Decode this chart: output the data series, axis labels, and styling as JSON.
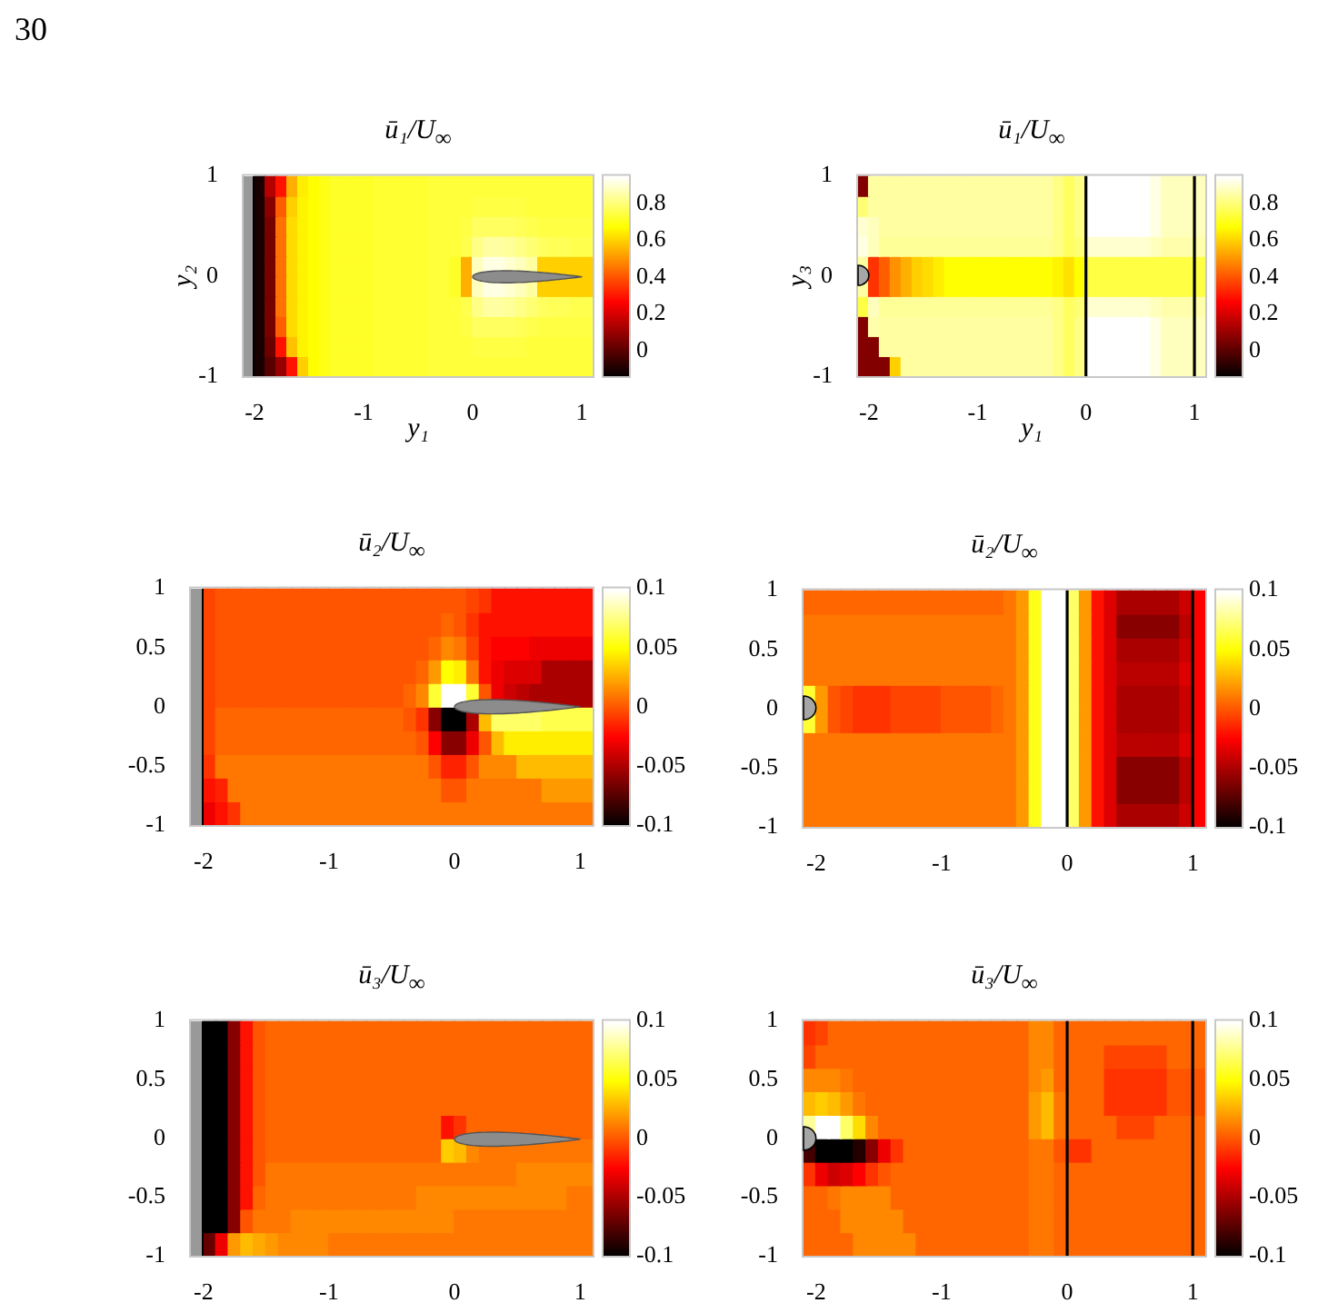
{
  "chart_data": [
    {
      "type": "heatmap",
      "title": "ū₁/U$_{∞}$",
      "xlabel": "y₁",
      "ylabel": "y₂",
      "annotations": [
        "30"
      ],
      "x": [
        -2.05,
        -1.95,
        -1.85,
        -1.75,
        -1.65,
        -1.55,
        -1.45,
        -1.35,
        -1.25,
        -1.15,
        -1.05,
        -0.95,
        -0.85,
        -0.75,
        -0.65,
        -0.55,
        -0.45,
        -0.35,
        -0.25,
        -0.15,
        -0.05,
        0.05,
        0.15,
        0.25,
        0.35,
        0.45,
        0.55,
        0.65,
        0.75,
        0.85,
        0.95,
        1.05
      ],
      "xlim": [
        -2.1,
        1.1
      ],
      "xticks": [
        -2,
        -1,
        0,
        1
      ],
      "ylim": [
        -1,
        1
      ],
      "yticks": [
        -1,
        0,
        1
      ],
      "clim": [
        -0.14,
        0.95
      ],
      "cticks": [
        0,
        0.2,
        0.4,
        0.6,
        0.8
      ],
      "cells": [
        [
          null,
          -0.1,
          0.15,
          0.3,
          0.55,
          0.65,
          0.68,
          0.7,
          0.72,
          0.72,
          0.72,
          0.72,
          0.73,
          0.73,
          0.73,
          0.73,
          0.73,
          0.74,
          0.74,
          0.74,
          0.74,
          0.74,
          0.74,
          0.74,
          0.74,
          0.74,
          0.74,
          0.74,
          0.74,
          0.74,
          0.74,
          0.74
        ],
        [
          null,
          -0.1,
          0.08,
          0.42,
          0.6,
          0.66,
          0.68,
          0.7,
          0.72,
          0.72,
          0.72,
          0.72,
          0.73,
          0.73,
          0.73,
          0.73,
          0.73,
          0.74,
          0.74,
          0.74,
          0.74,
          0.75,
          0.75,
          0.75,
          0.75,
          0.75,
          0.74,
          0.74,
          0.74,
          0.74,
          0.74,
          0.74
        ],
        [
          null,
          -0.1,
          0.05,
          0.45,
          0.62,
          0.66,
          0.68,
          0.7,
          0.72,
          0.72,
          0.72,
          0.72,
          0.73,
          0.73,
          0.73,
          0.73,
          0.73,
          0.74,
          0.74,
          0.74,
          0.75,
          0.78,
          0.78,
          0.78,
          0.78,
          0.77,
          0.76,
          0.75,
          0.75,
          0.75,
          0.75,
          0.75
        ],
        [
          null,
          -0.1,
          0.05,
          0.45,
          0.62,
          0.66,
          0.68,
          0.7,
          0.72,
          0.72,
          0.72,
          0.72,
          0.73,
          0.73,
          0.73,
          0.73,
          0.73,
          0.74,
          0.74,
          0.74,
          0.76,
          0.82,
          0.85,
          0.85,
          0.84,
          0.82,
          0.8,
          0.78,
          0.77,
          0.77,
          0.76,
          0.76
        ],
        [
          null,
          -0.1,
          0.05,
          0.45,
          0.62,
          0.66,
          0.68,
          0.7,
          0.72,
          0.72,
          0.72,
          0.72,
          0.73,
          0.73,
          0.73,
          0.73,
          0.73,
          0.74,
          0.74,
          0.72,
          0.55,
          0.88,
          0.92,
          0.92,
          0.9,
          0.88,
          0.85,
          0.6,
          0.6,
          0.6,
          0.6,
          0.6
        ],
        [
          null,
          -0.1,
          0.05,
          0.45,
          0.62,
          0.66,
          0.68,
          0.7,
          0.72,
          0.72,
          0.72,
          0.72,
          0.73,
          0.73,
          0.73,
          0.73,
          0.73,
          0.74,
          0.74,
          0.72,
          0.55,
          0.88,
          0.92,
          0.92,
          0.9,
          0.88,
          0.85,
          0.6,
          0.6,
          0.6,
          0.6,
          0.6
        ],
        [
          null,
          -0.1,
          0.05,
          0.45,
          0.62,
          0.66,
          0.68,
          0.7,
          0.72,
          0.72,
          0.72,
          0.72,
          0.73,
          0.73,
          0.73,
          0.73,
          0.73,
          0.74,
          0.74,
          0.74,
          0.76,
          0.82,
          0.85,
          0.85,
          0.84,
          0.82,
          0.8,
          0.78,
          0.77,
          0.77,
          0.76,
          0.76
        ],
        [
          null,
          -0.1,
          0.05,
          0.42,
          0.62,
          0.66,
          0.68,
          0.7,
          0.72,
          0.72,
          0.72,
          0.72,
          0.73,
          0.73,
          0.73,
          0.73,
          0.73,
          0.74,
          0.74,
          0.74,
          0.75,
          0.78,
          0.78,
          0.78,
          0.78,
          0.77,
          0.76,
          0.75,
          0.75,
          0.75,
          0.75,
          0.75
        ],
        [
          null,
          -0.1,
          0.03,
          0.3,
          0.58,
          0.66,
          0.68,
          0.7,
          0.72,
          0.72,
          0.72,
          0.72,
          0.73,
          0.73,
          0.73,
          0.73,
          0.73,
          0.74,
          0.74,
          0.74,
          0.74,
          0.75,
          0.75,
          0.75,
          0.75,
          0.75,
          0.74,
          0.74,
          0.74,
          0.74,
          0.74,
          0.74
        ],
        [
          null,
          -0.1,
          0,
          0.1,
          0.3,
          0.6,
          0.68,
          0.7,
          0.72,
          0.72,
          0.72,
          0.72,
          0.73,
          0.73,
          0.73,
          0.73,
          0.73,
          0.74,
          0.74,
          0.74,
          0.74,
          0.74,
          0.74,
          0.74,
          0.74,
          0.74,
          0.74,
          0.74,
          0.74,
          0.74,
          0.74,
          0.74
        ]
      ]
    },
    {
      "type": "heatmap",
      "title": "ū₁/U$_{∞}$",
      "xlabel": "y₁",
      "ylabel": "y₃",
      "x": [
        -2.05,
        -1.95,
        -1.85,
        -1.75,
        -1.65,
        -1.55,
        -1.45,
        -1.35,
        -1.25,
        -1.15,
        -1.05,
        -0.95,
        -0.85,
        -0.75,
        -0.65,
        -0.55,
        -0.45,
        -0.35,
        -0.25,
        -0.15,
        -0.05,
        0.05,
        0.15,
        0.25,
        0.35,
        0.45,
        0.55,
        0.65,
        0.75,
        0.85,
        0.95,
        1.05
      ],
      "xlim": [
        -2.1,
        1.1
      ],
      "xticks": [
        -2,
        -1,
        0,
        1
      ],
      "ylim": [
        -1,
        1
      ],
      "yticks": [
        -1,
        0,
        1
      ],
      "clim": [
        -0.14,
        0.95
      ],
      "cticks": [
        0,
        0.2,
        0.4,
        0.6,
        0.8
      ],
      "ref_lines": [
        {
          "axis": "x",
          "value": 0,
          "color": "#000000"
        },
        {
          "axis": "x",
          "value": 1,
          "color": "#000000"
        }
      ],
      "cells": [
        [
          0.07,
          0.85,
          0.85,
          0.85,
          0.85,
          0.85,
          0.85,
          0.85,
          0.85,
          0.85,
          0.85,
          0.85,
          0.85,
          0.85,
          0.85,
          0.85,
          0.85,
          0.85,
          0.82,
          0.78,
          0.82,
          0.95,
          0.95,
          0.95,
          0.95,
          0.95,
          0.95,
          0.92,
          0.88,
          0.88,
          0.88,
          0.88
        ],
        [
          0.8,
          0.85,
          0.85,
          0.85,
          0.85,
          0.85,
          0.85,
          0.85,
          0.85,
          0.85,
          0.85,
          0.85,
          0.85,
          0.85,
          0.85,
          0.85,
          0.85,
          0.85,
          0.82,
          0.78,
          0.82,
          0.95,
          0.95,
          0.95,
          0.95,
          0.95,
          0.95,
          0.92,
          0.88,
          0.88,
          0.88,
          0.88
        ],
        [
          0.9,
          0.88,
          0.85,
          0.85,
          0.85,
          0.85,
          0.85,
          0.85,
          0.85,
          0.85,
          0.85,
          0.85,
          0.85,
          0.85,
          0.85,
          0.85,
          0.85,
          0.85,
          0.82,
          0.78,
          0.82,
          0.95,
          0.95,
          0.95,
          0.95,
          0.95,
          0.95,
          0.92,
          0.88,
          0.88,
          0.88,
          0.88
        ],
        [
          0.92,
          0.88,
          0.84,
          0.84,
          0.84,
          0.84,
          0.84,
          0.84,
          0.84,
          0.84,
          0.84,
          0.84,
          0.84,
          0.84,
          0.84,
          0.84,
          0.84,
          0.84,
          0.82,
          0.78,
          0.8,
          0.9,
          0.9,
          0.9,
          0.9,
          0.9,
          0.9,
          0.88,
          0.86,
          0.86,
          0.86,
          0.86
        ],
        [
          0.85,
          0.35,
          0.42,
          0.5,
          0.55,
          0.6,
          0.62,
          0.65,
          0.68,
          0.68,
          0.68,
          0.68,
          0.68,
          0.68,
          0.68,
          0.68,
          0.68,
          0.68,
          0.66,
          0.63,
          0.68,
          0.75,
          0.75,
          0.75,
          0.75,
          0.75,
          0.75,
          0.75,
          0.75,
          0.75,
          0.75,
          0.75
        ],
        [
          0.85,
          0.35,
          0.42,
          0.5,
          0.55,
          0.6,
          0.62,
          0.65,
          0.68,
          0.68,
          0.68,
          0.68,
          0.68,
          0.68,
          0.68,
          0.68,
          0.68,
          0.68,
          0.66,
          0.63,
          0.68,
          0.75,
          0.75,
          0.75,
          0.75,
          0.75,
          0.75,
          0.75,
          0.75,
          0.75,
          0.75,
          0.75
        ],
        [
          0.75,
          0.88,
          0.84,
          0.84,
          0.84,
          0.84,
          0.84,
          0.84,
          0.84,
          0.84,
          0.84,
          0.84,
          0.84,
          0.84,
          0.84,
          0.84,
          0.84,
          0.84,
          0.82,
          0.78,
          0.8,
          0.9,
          0.9,
          0.9,
          0.9,
          0.9,
          0.9,
          0.88,
          0.86,
          0.86,
          0.86,
          0.86
        ],
        [
          0.07,
          0.86,
          0.85,
          0.85,
          0.85,
          0.85,
          0.85,
          0.85,
          0.85,
          0.85,
          0.85,
          0.85,
          0.85,
          0.85,
          0.85,
          0.85,
          0.85,
          0.85,
          0.82,
          0.78,
          0.82,
          0.95,
          0.95,
          0.95,
          0.95,
          0.95,
          0.95,
          0.92,
          0.88,
          0.88,
          0.88,
          0.88
        ],
        [
          0.07,
          0.07,
          0.85,
          0.85,
          0.85,
          0.85,
          0.85,
          0.85,
          0.85,
          0.85,
          0.85,
          0.85,
          0.85,
          0.85,
          0.85,
          0.85,
          0.85,
          0.85,
          0.82,
          0.78,
          0.82,
          0.95,
          0.95,
          0.95,
          0.95,
          0.95,
          0.95,
          0.92,
          0.88,
          0.88,
          0.88,
          0.88
        ],
        [
          0.07,
          0.07,
          0.07,
          0.6,
          0.85,
          0.85,
          0.85,
          0.85,
          0.85,
          0.85,
          0.85,
          0.85,
          0.85,
          0.85,
          0.85,
          0.85,
          0.85,
          0.85,
          0.82,
          0.78,
          0.82,
          0.95,
          0.95,
          0.95,
          0.95,
          0.95,
          0.95,
          0.92,
          0.88,
          0.88,
          0.88,
          0.88
        ]
      ]
    },
    {
      "type": "heatmap",
      "title": "ū₂/U$_{∞}$",
      "x": [
        -2.05,
        -1.95,
        -1.85,
        -1.75,
        -1.65,
        -1.55,
        -1.45,
        -1.35,
        -1.25,
        -1.15,
        -1.05,
        -0.95,
        -0.85,
        -0.75,
        -0.65,
        -0.55,
        -0.45,
        -0.35,
        -0.25,
        -0.15,
        -0.05,
        0.05,
        0.15,
        0.25,
        0.35,
        0.45,
        0.55,
        0.65,
        0.75,
        0.85,
        0.95,
        1.05
      ],
      "xlim": [
        -2.1,
        1.1
      ],
      "xticks": [
        -2,
        -1,
        0,
        1
      ],
      "ylim": [
        -1,
        1
      ],
      "yticks": [
        -1,
        -0.5,
        0,
        0.5,
        1
      ],
      "clim": [
        -0.1,
        0.1
      ],
      "cticks": [
        -0.1,
        -0.05,
        0,
        0.05,
        0.1
      ],
      "cells": [
        [
          null,
          -0.005,
          0,
          0,
          0,
          0,
          0,
          0,
          0,
          0,
          0,
          0,
          0,
          0,
          0,
          0,
          0,
          0,
          0,
          0,
          0,
          0,
          -0.005,
          -0.01,
          -0.02,
          -0.02,
          -0.02,
          -0.02,
          -0.02,
          -0.02,
          -0.02,
          -0.02
        ],
        [
          null,
          -0.005,
          0,
          0,
          0,
          0,
          0,
          0,
          0,
          0,
          0,
          0,
          0,
          0,
          0,
          0,
          0,
          0,
          0,
          0,
          0.005,
          0,
          -0.01,
          -0.02,
          -0.02,
          -0.02,
          -0.02,
          -0.02,
          -0.02,
          -0.02,
          -0.02,
          -0.02
        ],
        [
          null,
          -0.005,
          0,
          0,
          0,
          0,
          0,
          0,
          0,
          0,
          0,
          0,
          0,
          0,
          0,
          0,
          0,
          0,
          0,
          0.005,
          0.015,
          0.01,
          -0.005,
          -0.02,
          -0.025,
          -0.025,
          -0.025,
          -0.03,
          -0.03,
          -0.03,
          -0.03,
          -0.03
        ],
        [
          null,
          -0.005,
          0,
          0,
          0,
          0,
          0,
          0,
          0,
          0,
          0,
          0,
          0,
          0,
          0,
          0,
          0,
          0,
          0.005,
          0.02,
          0.05,
          0.045,
          0.01,
          -0.02,
          -0.03,
          -0.035,
          -0.035,
          -0.035,
          -0.05,
          -0.05,
          -0.05,
          -0.05
        ],
        [
          null,
          -0.005,
          0,
          0,
          0,
          0,
          0,
          0,
          0,
          0,
          0,
          0,
          0,
          0,
          0,
          0,
          0,
          0.005,
          0.015,
          0.06,
          0.1,
          0.1,
          0.06,
          0,
          -0.03,
          -0.04,
          -0.045,
          -0.05,
          -0.05,
          -0.05,
          -0.05,
          -0.05
        ],
        [
          null,
          -0.005,
          0.005,
          0.005,
          0.005,
          0.005,
          0.005,
          0.005,
          0.005,
          0.005,
          0.005,
          0.005,
          0.005,
          0.005,
          0.005,
          0.005,
          0.005,
          0,
          -0.01,
          -0.06,
          -0.1,
          -0.1,
          -0.05,
          0.03,
          0.07,
          0.07,
          0.07,
          0.07,
          0.065,
          0.065,
          0.065,
          0.065
        ],
        [
          null,
          -0.005,
          0.005,
          0.005,
          0.005,
          0.005,
          0.005,
          0.005,
          0.005,
          0.005,
          0.005,
          0.005,
          0.005,
          0.005,
          0.005,
          0.005,
          0.005,
          0.005,
          0,
          -0.025,
          -0.06,
          -0.06,
          -0.03,
          0,
          0.03,
          0.045,
          0.045,
          0.045,
          0.045,
          0.045,
          0.045,
          0.045
        ],
        [
          null,
          -0.01,
          0.01,
          0.01,
          0.01,
          0.01,
          0.01,
          0.01,
          0.01,
          0.01,
          0.01,
          0.01,
          0.01,
          0.01,
          0.01,
          0.01,
          0.01,
          0.01,
          0.01,
          0,
          -0.015,
          -0.015,
          0,
          0.015,
          0.015,
          0.015,
          0.03,
          0.03,
          0.03,
          0.03,
          0.03,
          0.03
        ],
        [
          null,
          -0.02,
          -0.015,
          0.01,
          0.01,
          0.01,
          0.01,
          0.01,
          0.01,
          0.01,
          0.01,
          0.01,
          0.01,
          0.01,
          0.01,
          0.01,
          0.01,
          0.01,
          0.01,
          0.01,
          0,
          0,
          0.01,
          0.01,
          0.01,
          0.01,
          0.01,
          0.01,
          0.02,
          0.02,
          0.02,
          0.02
        ],
        [
          null,
          -0.03,
          -0.02,
          -0.01,
          0.01,
          0.01,
          0.01,
          0.01,
          0.01,
          0.01,
          0.01,
          0.01,
          0.01,
          0.01,
          0.01,
          0.01,
          0.01,
          0.01,
          0.01,
          0.01,
          0.01,
          0.01,
          0.01,
          0.01,
          0.01,
          0.01,
          0.01,
          0.01,
          0.01,
          0.01,
          0.01,
          0.01
        ]
      ]
    },
    {
      "type": "heatmap",
      "title": "ū₂/U$_{∞}$",
      "x": [
        -2.05,
        -1.95,
        -1.85,
        -1.75,
        -1.65,
        -1.55,
        -1.45,
        -1.35,
        -1.25,
        -1.15,
        -1.05,
        -0.95,
        -0.85,
        -0.75,
        -0.65,
        -0.55,
        -0.45,
        -0.35,
        -0.25,
        -0.15,
        -0.05,
        0.05,
        0.15,
        0.25,
        0.35,
        0.45,
        0.55,
        0.65,
        0.75,
        0.85,
        0.95,
        1.05
      ],
      "xlim": [
        -2.1,
        1.1
      ],
      "xticks": [
        -2,
        -1,
        0,
        1
      ],
      "ylim": [
        -1,
        1
      ],
      "yticks": [
        -1,
        -0.5,
        0,
        0.5,
        1
      ],
      "clim": [
        -0.1,
        0.1
      ],
      "cticks": [
        -0.1,
        -0.05,
        0,
        0.05,
        0.1
      ],
      "ref_lines": [
        {
          "axis": "x",
          "value": 0,
          "color": "#000000"
        },
        {
          "axis": "x",
          "value": 1,
          "color": "#000000"
        }
      ],
      "cells": [
        [
          0.005,
          0.005,
          0.005,
          0.005,
          0.005,
          0.005,
          0.005,
          0.005,
          0.005,
          0.005,
          0.005,
          0.005,
          0.005,
          0.005,
          0.005,
          0.005,
          0.01,
          0.02,
          0.055,
          0.1,
          0.1,
          0.07,
          0.02,
          -0.02,
          -0.035,
          -0.05,
          -0.05,
          -0.05,
          -0.05,
          -0.05,
          -0.04,
          -0.025
        ],
        [
          0.01,
          0.01,
          0.01,
          0.01,
          0.01,
          0.01,
          0.01,
          0.01,
          0.01,
          0.01,
          0.01,
          0.01,
          0.01,
          0.01,
          0.01,
          0.01,
          0.01,
          0.02,
          0.055,
          0.1,
          0.1,
          0.07,
          0.02,
          -0.02,
          -0.035,
          -0.06,
          -0.06,
          -0.06,
          -0.06,
          -0.06,
          -0.045,
          -0.025
        ],
        [
          0.01,
          0.01,
          0.01,
          0.01,
          0.01,
          0.01,
          0.01,
          0.01,
          0.01,
          0.01,
          0.01,
          0.01,
          0.01,
          0.01,
          0.01,
          0.01,
          0.01,
          0.02,
          0.055,
          0.1,
          0.1,
          0.07,
          0.02,
          -0.02,
          -0.035,
          -0.05,
          -0.05,
          -0.05,
          -0.05,
          -0.05,
          -0.04,
          -0.025
        ],
        [
          0.01,
          0.01,
          0.01,
          0.01,
          0.01,
          0.01,
          0.01,
          0.01,
          0.01,
          0.01,
          0.01,
          0.01,
          0.01,
          0.01,
          0.01,
          0.01,
          0.01,
          0.02,
          0.055,
          0.1,
          0.1,
          0.07,
          0.02,
          -0.02,
          -0.035,
          -0.045,
          -0.045,
          -0.045,
          -0.045,
          -0.045,
          -0.035,
          -0.025
        ],
        [
          0.06,
          0.02,
          0,
          -0.005,
          -0.01,
          -0.01,
          -0.01,
          -0.005,
          -0.005,
          -0.005,
          -0.005,
          0,
          0,
          0,
          0,
          0.005,
          0.01,
          0.02,
          0.055,
          0.1,
          0.1,
          0.07,
          0.02,
          -0.02,
          -0.035,
          -0.05,
          -0.05,
          -0.05,
          -0.05,
          -0.05,
          -0.04,
          -0.025
        ],
        [
          0.06,
          0.02,
          0,
          -0.005,
          -0.01,
          -0.01,
          -0.01,
          -0.005,
          -0.005,
          -0.005,
          -0.005,
          0,
          0,
          0,
          0,
          0.005,
          0.01,
          0.02,
          0.055,
          0.1,
          0.1,
          0.07,
          0.02,
          -0.02,
          -0.035,
          -0.05,
          -0.05,
          -0.05,
          -0.05,
          -0.05,
          -0.04,
          -0.025
        ],
        [
          0.01,
          0.01,
          0.01,
          0.01,
          0.01,
          0.01,
          0.01,
          0.01,
          0.01,
          0.01,
          0.01,
          0.01,
          0.01,
          0.01,
          0.01,
          0.01,
          0.01,
          0.02,
          0.055,
          0.1,
          0.1,
          0.07,
          0.02,
          -0.02,
          -0.035,
          -0.045,
          -0.045,
          -0.045,
          -0.045,
          -0.045,
          -0.035,
          -0.025
        ],
        [
          0.01,
          0.01,
          0.01,
          0.01,
          0.01,
          0.01,
          0.01,
          0.01,
          0.01,
          0.01,
          0.01,
          0.01,
          0.01,
          0.01,
          0.01,
          0.01,
          0.01,
          0.02,
          0.055,
          0.1,
          0.1,
          0.07,
          0.02,
          -0.02,
          -0.035,
          -0.06,
          -0.06,
          -0.06,
          -0.06,
          -0.06,
          -0.045,
          -0.025
        ],
        [
          0.01,
          0.01,
          0.01,
          0.01,
          0.01,
          0.01,
          0.01,
          0.01,
          0.01,
          0.01,
          0.01,
          0.01,
          0.01,
          0.01,
          0.01,
          0.01,
          0.01,
          0.02,
          0.055,
          0.1,
          0.1,
          0.07,
          0.02,
          -0.02,
          -0.035,
          -0.06,
          -0.06,
          -0.06,
          -0.06,
          -0.06,
          -0.045,
          -0.025
        ],
        [
          0.01,
          0.01,
          0.01,
          0.01,
          0.01,
          0.01,
          0.01,
          0.01,
          0.01,
          0.01,
          0.01,
          0.01,
          0.01,
          0.01,
          0.01,
          0.01,
          0.01,
          0.02,
          0.055,
          0.1,
          0.1,
          0.07,
          0.02,
          -0.02,
          -0.035,
          -0.05,
          -0.05,
          -0.05,
          -0.05,
          -0.05,
          -0.04,
          -0.025
        ]
      ]
    },
    {
      "type": "heatmap",
      "title": "ū₃/U$_{∞}$",
      "x": [
        -2.05,
        -1.95,
        -1.85,
        -1.75,
        -1.65,
        -1.55,
        -1.45,
        -1.35,
        -1.25,
        -1.15,
        -1.05,
        -0.95,
        -0.85,
        -0.75,
        -0.65,
        -0.55,
        -0.45,
        -0.35,
        -0.25,
        -0.15,
        -0.05,
        0.05,
        0.15,
        0.25,
        0.35,
        0.45,
        0.55,
        0.65,
        0.75,
        0.85,
        0.95,
        1.05
      ],
      "xlim": [
        -2.1,
        1.1
      ],
      "xticks": [
        -2,
        -1,
        0,
        1
      ],
      "ylim": [
        -1,
        1
      ],
      "yticks": [
        -1,
        -0.5,
        0,
        0.5,
        1
      ],
      "clim": [
        -0.1,
        0.1
      ],
      "cticks": [
        -0.1,
        -0.05,
        0,
        0.05,
        0.1
      ],
      "cells": [
        [
          null,
          -0.1,
          -0.1,
          -0.06,
          -0.02,
          0,
          0.005,
          0.005,
          0.005,
          0.005,
          0.005,
          0.005,
          0.005,
          0.005,
          0.005,
          0.005,
          0.005,
          0.005,
          0.005,
          0.005,
          0.005,
          0.005,
          0.005,
          0.005,
          0.005,
          0.005,
          0.005,
          0.005,
          0.005,
          0.005,
          0.005,
          0.005
        ],
        [
          null,
          -0.1,
          -0.1,
          -0.06,
          -0.02,
          0,
          0.005,
          0.005,
          0.005,
          0.005,
          0.005,
          0.005,
          0.005,
          0.005,
          0.005,
          0.005,
          0.005,
          0.005,
          0.005,
          0.005,
          0.005,
          0.005,
          0.005,
          0.005,
          0.005,
          0.005,
          0.005,
          0.005,
          0.005,
          0.005,
          0.005,
          0.005
        ],
        [
          null,
          -0.1,
          -0.1,
          -0.06,
          -0.02,
          0,
          0.005,
          0.005,
          0.005,
          0.005,
          0.005,
          0.005,
          0.005,
          0.005,
          0.005,
          0.005,
          0.005,
          0.005,
          0.005,
          0.005,
          0.005,
          0.005,
          0.005,
          0.005,
          0.005,
          0.005,
          0.005,
          0.005,
          0.005,
          0.005,
          0.005,
          0.005
        ],
        [
          null,
          -0.1,
          -0.1,
          -0.06,
          -0.02,
          0,
          0.005,
          0.005,
          0.005,
          0.005,
          0.005,
          0.005,
          0.005,
          0.005,
          0.005,
          0.005,
          0.005,
          0.005,
          0.005,
          0.005,
          0.005,
          0.005,
          0.005,
          0.005,
          0.005,
          0.005,
          0.005,
          0.005,
          0.005,
          0.005,
          0.005,
          0.005
        ],
        [
          null,
          -0.1,
          -0.1,
          -0.06,
          -0.02,
          0,
          0.005,
          0.005,
          0.005,
          0.005,
          0.005,
          0.005,
          0.005,
          0.005,
          0.005,
          0.005,
          0.005,
          0.005,
          0.005,
          0.005,
          -0.02,
          -0.01,
          0.005,
          0.005,
          0.005,
          0.005,
          0.005,
          0.005,
          0.005,
          0.005,
          0.005,
          0.005
        ],
        [
          null,
          -0.1,
          -0.1,
          -0.06,
          -0.02,
          0,
          0.005,
          0.005,
          0.005,
          0.005,
          0.005,
          0.005,
          0.005,
          0.005,
          0.005,
          0.005,
          0.005,
          0.005,
          0.005,
          0.005,
          0.035,
          0.03,
          0.015,
          0.01,
          0.01,
          0.01,
          0.01,
          0.01,
          0.01,
          0.01,
          0.01,
          0.01
        ],
        [
          null,
          -0.1,
          -0.1,
          -0.06,
          -0.02,
          0,
          0.01,
          0.01,
          0.01,
          0.01,
          0.01,
          0.01,
          0.01,
          0.01,
          0.01,
          0.01,
          0.01,
          0.01,
          0.01,
          0.01,
          0.01,
          0.01,
          0.01,
          0.01,
          0.01,
          0.01,
          0.015,
          0.015,
          0.015,
          0.015,
          0.015,
          0.015
        ],
        [
          null,
          -0.1,
          -0.1,
          -0.06,
          -0.02,
          0.005,
          0.01,
          0.01,
          0.01,
          0.01,
          0.01,
          0.01,
          0.01,
          0.01,
          0.01,
          0.01,
          0.01,
          0.01,
          0.015,
          0.015,
          0.015,
          0.015,
          0.015,
          0.015,
          0.015,
          0.015,
          0.015,
          0.015,
          0.015,
          0.015,
          0.01,
          0.01
        ],
        [
          null,
          -0.1,
          -0.1,
          -0.06,
          0,
          0.01,
          0.01,
          0.01,
          0.015,
          0.015,
          0.015,
          0.015,
          0.015,
          0.015,
          0.015,
          0.015,
          0.015,
          0.015,
          0.015,
          0.015,
          0.015,
          0.01,
          0.01,
          0.01,
          0.01,
          0.01,
          0.01,
          0.01,
          0.01,
          0.01,
          0.01,
          0.01
        ],
        [
          null,
          -0.07,
          -0.03,
          0.02,
          0.03,
          0.025,
          0.02,
          0.015,
          0.015,
          0.015,
          0.015,
          0.01,
          0.01,
          0.01,
          0.01,
          0.01,
          0.01,
          0.01,
          0.01,
          0.01,
          0.01,
          0.01,
          0.01,
          0.01,
          0.01,
          0.01,
          0.01,
          0.01,
          0.01,
          0.01,
          0.01,
          0.01
        ]
      ]
    },
    {
      "type": "heatmap",
      "title": "ū₃/U$_{∞}$",
      "x": [
        -2.05,
        -1.95,
        -1.85,
        -1.75,
        -1.65,
        -1.55,
        -1.45,
        -1.35,
        -1.25,
        -1.15,
        -1.05,
        -0.95,
        -0.85,
        -0.75,
        -0.65,
        -0.55,
        -0.45,
        -0.35,
        -0.25,
        -0.15,
        -0.05,
        0.05,
        0.15,
        0.25,
        0.35,
        0.45,
        0.55,
        0.65,
        0.75,
        0.85,
        0.95,
        1.05
      ],
      "xlim": [
        -2.1,
        1.1
      ],
      "xticks": [
        -2,
        -1,
        0,
        1
      ],
      "ylim": [
        -1,
        1
      ],
      "yticks": [
        -1,
        -0.5,
        0,
        0.5,
        1
      ],
      "clim": [
        -0.1,
        0.1
      ],
      "cticks": [
        -0.1,
        -0.05,
        0,
        0.05,
        0.1
      ],
      "ref_lines": [
        {
          "axis": "x",
          "value": 0,
          "color": "#000000"
        },
        {
          "axis": "x",
          "value": 1,
          "color": "#000000"
        }
      ],
      "cells": [
        [
          -0.01,
          -0.005,
          0.005,
          0.005,
          0.005,
          0.005,
          0.005,
          0.005,
          0.005,
          0.005,
          0.005,
          0.005,
          0.005,
          0.005,
          0.005,
          0.005,
          0.005,
          0.005,
          0.015,
          0.015,
          0.005,
          0.005,
          0.005,
          0.005,
          0.005,
          0.005,
          0.005,
          0.005,
          0.005,
          0.005,
          0.005,
          0.005
        ],
        [
          -0.005,
          0.005,
          0.005,
          0.005,
          0.005,
          0.005,
          0.005,
          0.005,
          0.005,
          0.005,
          0.005,
          0.005,
          0.005,
          0.005,
          0.005,
          0.005,
          0.005,
          0.005,
          0.015,
          0.015,
          0.005,
          0.005,
          0.005,
          0.005,
          -0.005,
          -0.005,
          -0.005,
          -0.005,
          -0.005,
          0.005,
          0.005,
          0.005
        ],
        [
          0.015,
          0.015,
          0.015,
          0.01,
          0.005,
          0.005,
          0.005,
          0.005,
          0.005,
          0.005,
          0.005,
          0.005,
          0.005,
          0.005,
          0.005,
          0.005,
          0.005,
          0.005,
          0.015,
          0.02,
          0.005,
          0.005,
          0.005,
          0.005,
          -0.01,
          -0.01,
          -0.01,
          -0.01,
          -0.01,
          0,
          0,
          0
        ],
        [
          0.03,
          0.035,
          0.03,
          0.02,
          0.01,
          0.005,
          0.005,
          0.005,
          0.005,
          0.005,
          0.005,
          0.005,
          0.005,
          0.005,
          0.005,
          0.005,
          0.005,
          0.005,
          0.02,
          0.03,
          0.01,
          0.005,
          0.005,
          0.005,
          -0.01,
          -0.01,
          -0.01,
          -0.01,
          -0.01,
          0,
          0,
          0
        ],
        [
          0.08,
          0.1,
          0.1,
          0.07,
          0.04,
          0.015,
          0.005,
          0.005,
          0.005,
          0.005,
          0.005,
          0.005,
          0.005,
          0.005,
          0.005,
          0.005,
          0.005,
          0.005,
          0.02,
          0.03,
          0.01,
          0.005,
          0.005,
          0.005,
          0.005,
          -0.005,
          -0.005,
          -0.005,
          0.005,
          0.005,
          0.005,
          0.005
        ],
        [
          -0.08,
          -0.1,
          -0.1,
          -0.1,
          -0.09,
          -0.06,
          -0.03,
          -0.01,
          0.005,
          0.005,
          0.005,
          0.005,
          0.005,
          0.005,
          0.005,
          0.005,
          0.005,
          0.005,
          0.01,
          0.01,
          0,
          -0.01,
          -0.01,
          0.005,
          0.005,
          0.005,
          0.005,
          0.005,
          0.005,
          0.005,
          0.005,
          0.005
        ],
        [
          -0.01,
          -0.03,
          -0.04,
          -0.035,
          -0.025,
          -0.01,
          0,
          0.005,
          0.005,
          0.005,
          0.005,
          0.005,
          0.005,
          0.005,
          0.005,
          0.005,
          0.005,
          0.005,
          0.01,
          0.01,
          0.005,
          0.005,
          0.005,
          0.005,
          0.005,
          0.005,
          0.005,
          0.005,
          0.005,
          0.005,
          0.005,
          0.005
        ],
        [
          0.005,
          0.005,
          0.01,
          0.015,
          0.015,
          0.015,
          0.015,
          0.005,
          0.005,
          0.005,
          0.005,
          0.005,
          0.005,
          0.005,
          0.005,
          0.005,
          0.005,
          0.005,
          0.01,
          0.01,
          0.005,
          0.005,
          0.005,
          0.005,
          0.005,
          0.005,
          0.005,
          0.005,
          0.005,
          0.005,
          0.005,
          0.005
        ],
        [
          0.005,
          0.005,
          0.005,
          0.015,
          0.015,
          0.015,
          0.015,
          0.015,
          0.005,
          0.005,
          0.005,
          0.005,
          0.005,
          0.005,
          0.005,
          0.005,
          0.005,
          0.005,
          0.01,
          0.01,
          0.005,
          0.005,
          0.005,
          0.005,
          0.005,
          0.005,
          0.005,
          0.005,
          0.005,
          0.005,
          0.005,
          0.005
        ],
        [
          0.005,
          0.005,
          0.005,
          0.005,
          0.015,
          0.015,
          0.015,
          0.015,
          0.015,
          0.005,
          0.005,
          0.005,
          0.005,
          0.005,
          0.005,
          0.005,
          0.005,
          0.005,
          0.01,
          0.01,
          0.005,
          0.005,
          0.005,
          0.005,
          0.005,
          0.005,
          0.005,
          0.005,
          0.005,
          0.005,
          0.005,
          0.005
        ]
      ]
    }
  ]
}
